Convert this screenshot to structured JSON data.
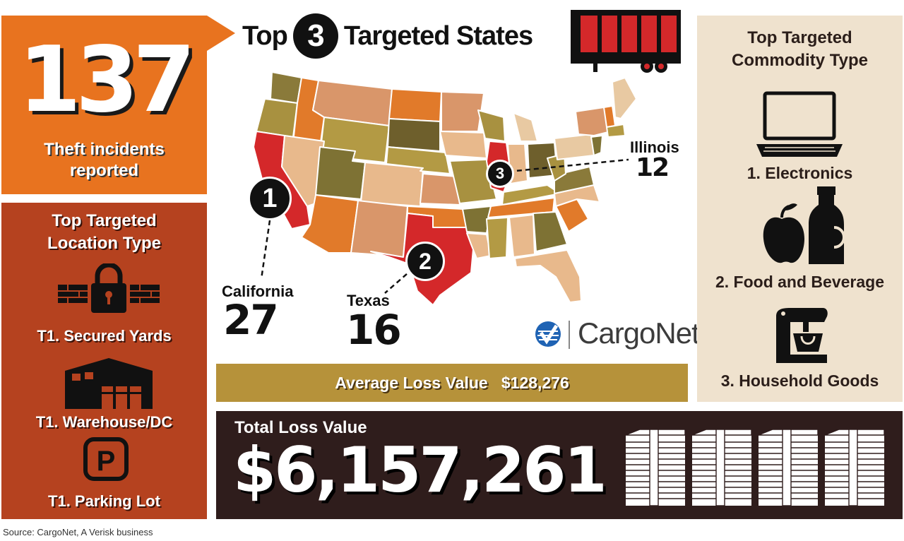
{
  "incidents": {
    "count": "137",
    "label_line1": "Theft incidents",
    "label_line2": "reported"
  },
  "title": {
    "before": "Top",
    "number": "3",
    "after": "Targeted States"
  },
  "locations": {
    "title_line1": "Top Targeted",
    "title_line2": "Location Type",
    "items": [
      {
        "label": "T1. Secured Yards",
        "icon": "padlock-fence-icon"
      },
      {
        "label": "T1. Warehouse/DC",
        "icon": "warehouse-icon"
      },
      {
        "label": "T1. Parking Lot",
        "icon": "parking-sign-icon"
      }
    ]
  },
  "states": [
    {
      "rank": "1",
      "name": "California",
      "count": "27"
    },
    {
      "rank": "2",
      "name": "Texas",
      "count": "16"
    },
    {
      "rank": "3",
      "name": "Illinois",
      "count": "12"
    }
  ],
  "commodities": {
    "title_line1": "Top Targeted",
    "title_line2": "Commodity Type",
    "items": [
      {
        "label": "1. Electronics",
        "icon": "laptop-icon"
      },
      {
        "label": "2. Food and Beverage",
        "icon": "apple-bottle-icon"
      },
      {
        "label": "3. Household Goods",
        "icon": "stand-mixer-icon"
      }
    ]
  },
  "average_loss": {
    "label": "Average Loss Value",
    "value": "$128,276"
  },
  "total_loss": {
    "label": "Total Loss Value",
    "value": "$6,157,261"
  },
  "brand": {
    "name": "CargoNet"
  },
  "source": "Source: CargoNet, A Verisk business",
  "colors": {
    "orange": "#e8731f",
    "rust": "#b5421f",
    "beige": "#efe2ce",
    "gold": "#b6923a",
    "dark_brown": "#2f1d1c",
    "highlight_red": "#d4282a"
  }
}
